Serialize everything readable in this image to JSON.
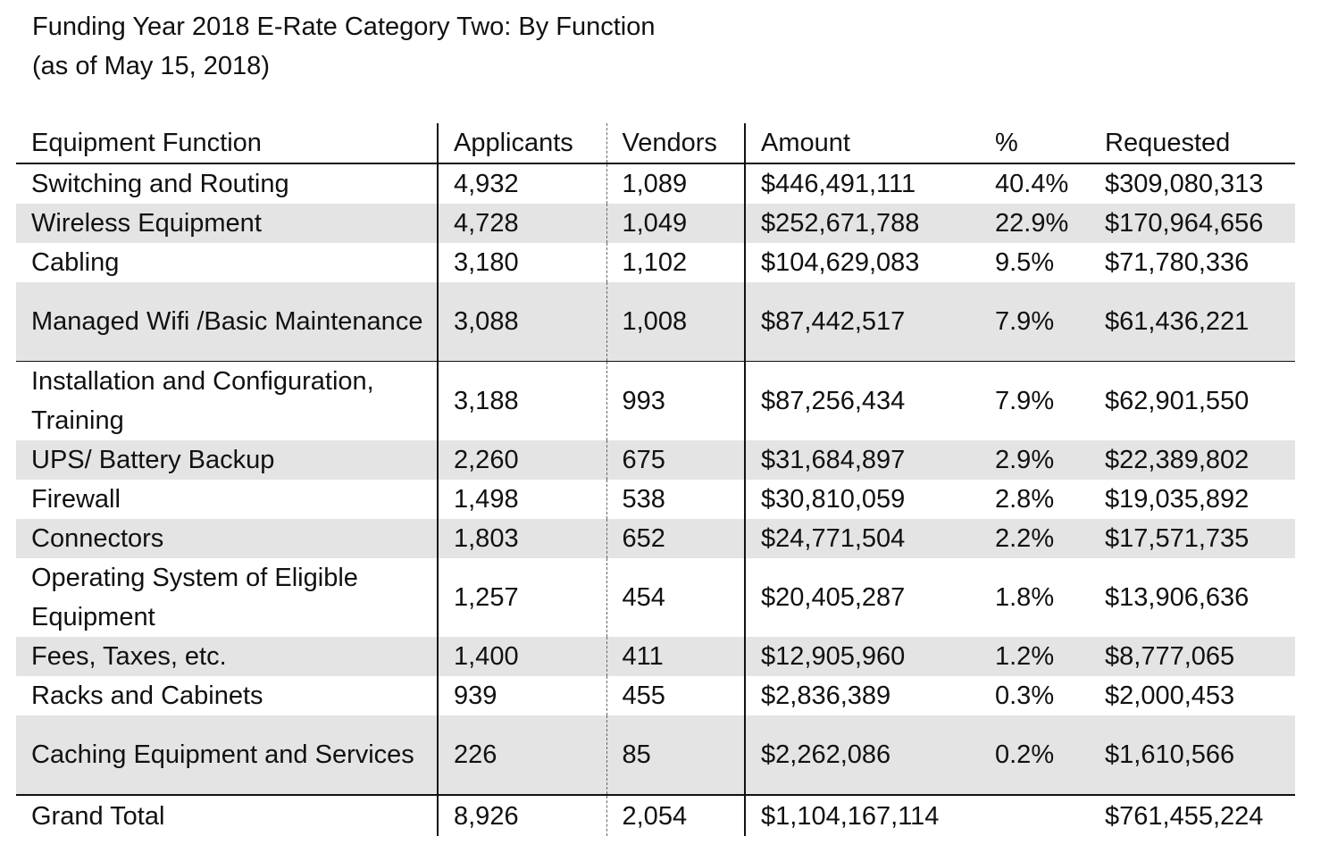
{
  "title": {
    "line1": "Funding Year 2018 E-Rate Category Two: By Function",
    "line2": "(as of May 15, 2018)"
  },
  "table": {
    "headers": [
      "Equipment Function",
      "Applicants",
      "Vendors",
      "Amount",
      "%",
      "Requested"
    ],
    "rows": [
      {
        "function": "Switching and Routing",
        "applicants": "4,932",
        "vendors": "1,089",
        "amount": "$446,491,111",
        "pct": "40.4%",
        "requested": "$309,080,313"
      },
      {
        "function": "Wireless Equipment",
        "applicants": "4,728",
        "vendors": "1,049",
        "amount": "$252,671,788",
        "pct": "22.9%",
        "requested": "$170,964,656"
      },
      {
        "function": "Cabling",
        "applicants": "3,180",
        "vendors": "1,102",
        "amount": "$104,629,083",
        "pct": "9.5%",
        "requested": "$71,780,336"
      },
      {
        "function": "Managed Wifi /Basic Maintenance",
        "applicants": "3,088",
        "vendors": "1,008",
        "amount": "$87,442,517",
        "pct": "7.9%",
        "requested": "$61,436,221"
      },
      {
        "function": "Installation and Configuration, Training",
        "applicants": "3,188",
        "vendors": "993",
        "amount": "$87,256,434",
        "pct": "7.9%",
        "requested": "$62,901,550"
      },
      {
        "function": "UPS/ Battery Backup",
        "applicants": "2,260",
        "vendors": "675",
        "amount": "$31,684,897",
        "pct": "2.9%",
        "requested": "$22,389,802"
      },
      {
        "function": "Firewall",
        "applicants": "1,498",
        "vendors": "538",
        "amount": "$30,810,059",
        "pct": "2.8%",
        "requested": "$19,035,892"
      },
      {
        "function": "Connectors",
        "applicants": "1,803",
        "vendors": "652",
        "amount": "$24,771,504",
        "pct": "2.2%",
        "requested": "$17,571,735"
      },
      {
        "function": "Operating System of Eligible Equipment",
        "applicants": "1,257",
        "vendors": "454",
        "amount": "$20,405,287",
        "pct": "1.8%",
        "requested": "$13,906,636"
      },
      {
        "function": "Fees, Taxes, etc.",
        "applicants": "1,400",
        "vendors": "411",
        "amount": "$12,905,960",
        "pct": "1.2%",
        "requested": "$8,777,065"
      },
      {
        "function": "Racks and Cabinets",
        "applicants": "939",
        "vendors": "455",
        "amount": "$2,836,389",
        "pct": "0.3%",
        "requested": "$2,000,453"
      },
      {
        "function": "Caching Equipment and Services",
        "applicants": "226",
        "vendors": "85",
        "amount": "$2,262,086",
        "pct": "0.2%",
        "requested": "$1,610,566"
      }
    ],
    "total": {
      "function": "Grand Total",
      "applicants": "8,926",
      "vendors": "2,054",
      "amount": "$1,104,167,114",
      "pct": "",
      "requested": "$761,455,224"
    }
  }
}
